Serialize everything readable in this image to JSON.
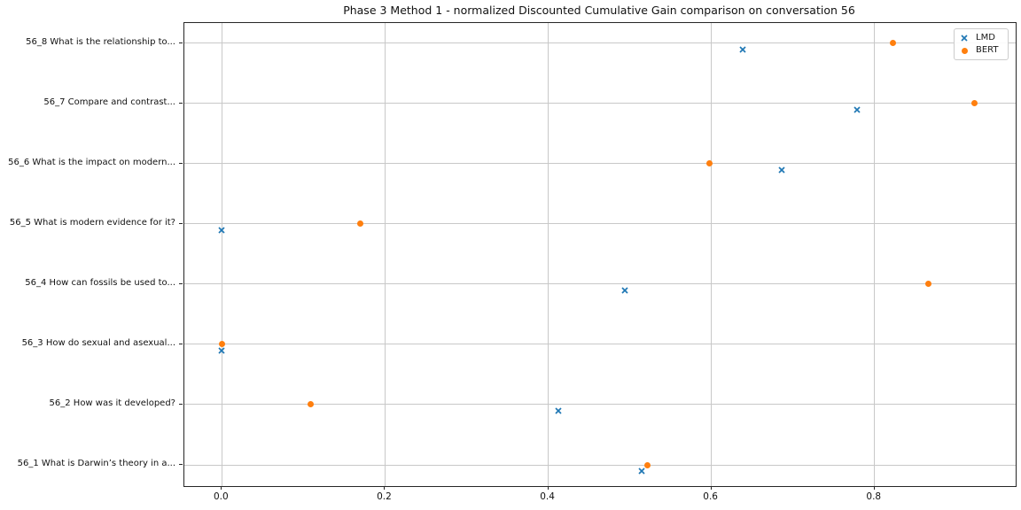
{
  "chart_data": {
    "type": "scatter",
    "title": "Phase 3 Method 1 - normalized Discounted Cumulative Gain comparison on conversation 56",
    "xlabel": "",
    "ylabel": "",
    "xlim": [
      -0.046,
      0.973
    ],
    "xticks": [
      "0.0",
      "0.2",
      "0.4",
      "0.6",
      "0.8"
    ],
    "xtick_values": [
      0.0,
      0.2,
      0.4,
      0.6,
      0.8
    ],
    "grid": true,
    "legend_position": "upper right",
    "categories_top_to_bottom": [
      "56_8 What is the relationship to...",
      "56_7 Compare and contrast...",
      "56_6 What is the impact on modern...",
      "56_5 What is modern evidence for it?",
      "56_4 How can fossils be used to...",
      "56_3 How do sexual and asexual...",
      "56_2 How was it developed?",
      "56_1 What is Darwin’s theory in a..."
    ],
    "series": [
      {
        "name": "LMD",
        "marker": "x",
        "color": "#1f77b4",
        "values": [
          0.638,
          0.779,
          0.686,
          0.0,
          0.494,
          0.0,
          0.412,
          0.515
        ]
      },
      {
        "name": "BERT",
        "marker": "circle",
        "color": "#ff7f0e",
        "values": [
          0.823,
          0.923,
          0.598,
          0.17,
          0.866,
          0.0,
          0.109,
          0.522
        ]
      }
    ]
  },
  "colors": {
    "lmd": "#1f77b4",
    "bert": "#ff7f0e",
    "grid": "#c8c8c8",
    "spine": "#262626",
    "legend_border": "#cccccc"
  }
}
